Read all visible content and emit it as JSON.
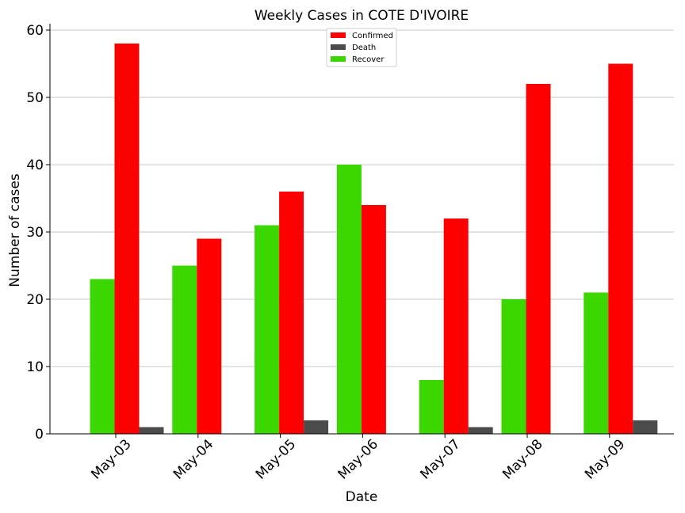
{
  "chart_data": {
    "type": "bar",
    "title": "Weekly Cases in COTE D'IVOIRE",
    "xlabel": "Date",
    "ylabel": "Number of cases",
    "categories": [
      "May-03",
      "May-04",
      "May-05",
      "May-06",
      "May-07",
      "May-08",
      "May-09"
    ],
    "series": [
      {
        "name": "Recover",
        "color": "#3cd700",
        "values": [
          23,
          25,
          31,
          40,
          8,
          20,
          21
        ]
      },
      {
        "name": "Confirmed",
        "color": "#ff0000",
        "values": [
          58,
          29,
          36,
          34,
          32,
          52,
          55
        ]
      },
      {
        "name": "Death",
        "color": "#4b4b4b",
        "values": [
          1,
          0,
          2,
          0,
          1,
          0,
          2
        ]
      }
    ],
    "legend_order": [
      "Confirmed",
      "Death",
      "Recover"
    ],
    "legend_position": "top-center",
    "ylim": [
      0,
      60
    ],
    "yticks": [
      0,
      10,
      20,
      30,
      40,
      50,
      60
    ],
    "grid": "horizontal"
  }
}
